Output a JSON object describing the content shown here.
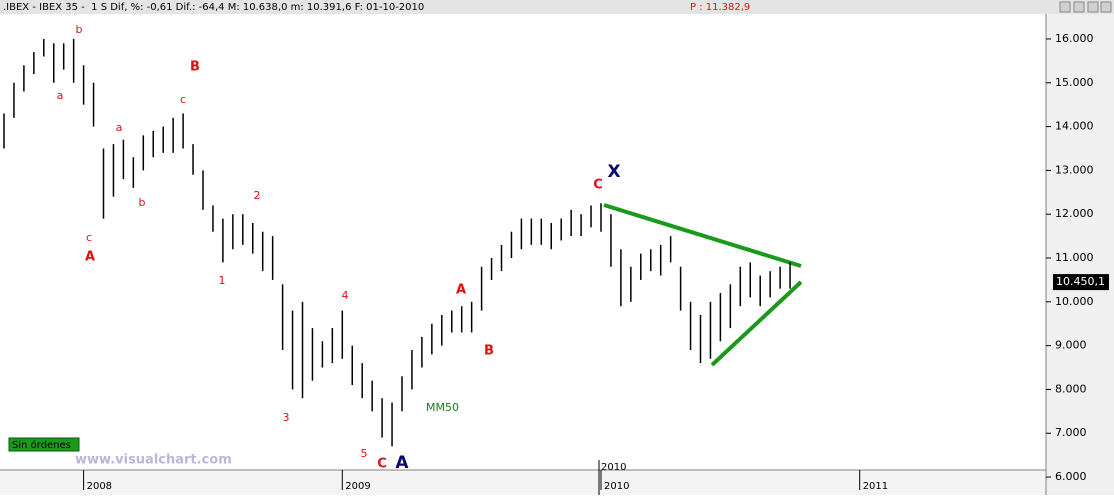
{
  "header": {
    "info": ".IBEX - IBEX 35 -  1 S Dif, %: -0,61 Dif.: -64,4 M: 10.638,0 m: 10.391,6 F: 01-10-2010",
    "price": "P : 11.382,9"
  },
  "chart_data": {
    "type": "hlbar",
    "color": "#000000",
    "categories": [
      null,
      null,
      null,
      null,
      null,
      null,
      null,
      null,
      "2008",
      null,
      null,
      null,
      null,
      null,
      null,
      null,
      null,
      null,
      null,
      null,
      null,
      null,
      null,
      null,
      null,
      null,
      null,
      null,
      null,
      null,
      null,
      null,
      null,
      null,
      "2009",
      null,
      null,
      null,
      null,
      null,
      null,
      null,
      null,
      null,
      null,
      null,
      null,
      null,
      null,
      null,
      null,
      null,
      null,
      null,
      null,
      null,
      null,
      null,
      null,
      null,
      "2010",
      null,
      null,
      null,
      null,
      null,
      null,
      null,
      null,
      null,
      null,
      null,
      null,
      null,
      null,
      null,
      null,
      null,
      null,
      null,
      null,
      null,
      null,
      null,
      null,
      null,
      "2011"
    ],
    "high": [
      14300,
      15000,
      15400,
      15700,
      16000,
      15900,
      15900,
      16000,
      15400,
      15000,
      13500,
      13600,
      13700,
      13300,
      13800,
      13900,
      14000,
      14200,
      14300,
      13600,
      13000,
      12200,
      11900,
      12000,
      12000,
      11800,
      11600,
      11500,
      10400,
      9800,
      10000,
      9400,
      9100,
      9400,
      9800,
      9000,
      8600,
      8200,
      7800,
      7700,
      8300,
      8900,
      9200,
      9500,
      9700,
      9800,
      9900,
      10000,
      10800,
      11000,
      11300,
      11600,
      11900,
      11900,
      11900,
      11800,
      11900,
      12100,
      12000,
      12200,
      12250,
      12000,
      11200,
      10800,
      11100,
      11200,
      11300,
      11500,
      10800,
      10000,
      9700,
      10000,
      10200,
      10400,
      10800,
      10900,
      10600,
      10700,
      10800,
      10900,
      null,
      null,
      null,
      null,
      null,
      null,
      null
    ],
    "low": [
      13500,
      14200,
      14800,
      15200,
      15600,
      15000,
      15300,
      15000,
      14500,
      14000,
      11900,
      12400,
      12800,
      12600,
      13000,
      13300,
      13400,
      13400,
      13500,
      12900,
      12100,
      11600,
      10900,
      11200,
      11300,
      11100,
      10700,
      10500,
      8900,
      8000,
      7800,
      8200,
      8500,
      8600,
      8700,
      8100,
      7800,
      7500,
      6900,
      6700,
      7500,
      8000,
      8500,
      8800,
      9000,
      9300,
      9300,
      9300,
      9800,
      10500,
      10700,
      11000,
      11200,
      11300,
      11300,
      11200,
      11400,
      11500,
      11500,
      11700,
      11600,
      10800,
      9900,
      10000,
      10500,
      10700,
      10600,
      10900,
      9800,
      8900,
      8600,
      8700,
      9100,
      9400,
      9900,
      10100,
      9900,
      10100,
      10300,
      10300,
      null,
      null,
      null,
      null,
      null,
      null,
      null
    ],
    "ylim": [
      5590,
      16570
    ],
    "yticks": [
      {
        "value": 16000,
        "label": "16.000"
      },
      {
        "value": 15000,
        "label": "15.000"
      },
      {
        "value": 14000,
        "label": "14.000"
      },
      {
        "value": 13000,
        "label": "13.000"
      },
      {
        "value": 12000,
        "label": "12.000"
      },
      {
        "value": 11000,
        "label": "11.000"
      },
      {
        "value": 10000,
        "label": "10.000"
      },
      {
        "value": 9000,
        "label": "9.000"
      },
      {
        "value": 8000,
        "label": "8.000"
      },
      {
        "value": 7000,
        "label": "7.000"
      },
      {
        "value": 6000,
        "label": "6.000"
      }
    ],
    "last": {
      "value": 10450.1,
      "label": "10.450,1"
    },
    "top_year_label": "2010",
    "annotations": [
      "b",
      "a",
      "a",
      "b",
      "c",
      "A",
      "B",
      "c",
      "2",
      "1",
      "3",
      "4",
      "5",
      "C",
      "A",
      "MM50",
      "A",
      "B",
      "C",
      "X"
    ],
    "trendline_color": "#1a9a1a"
  },
  "status": "Sin órdenes",
  "watermark": "www.visualchart.com"
}
